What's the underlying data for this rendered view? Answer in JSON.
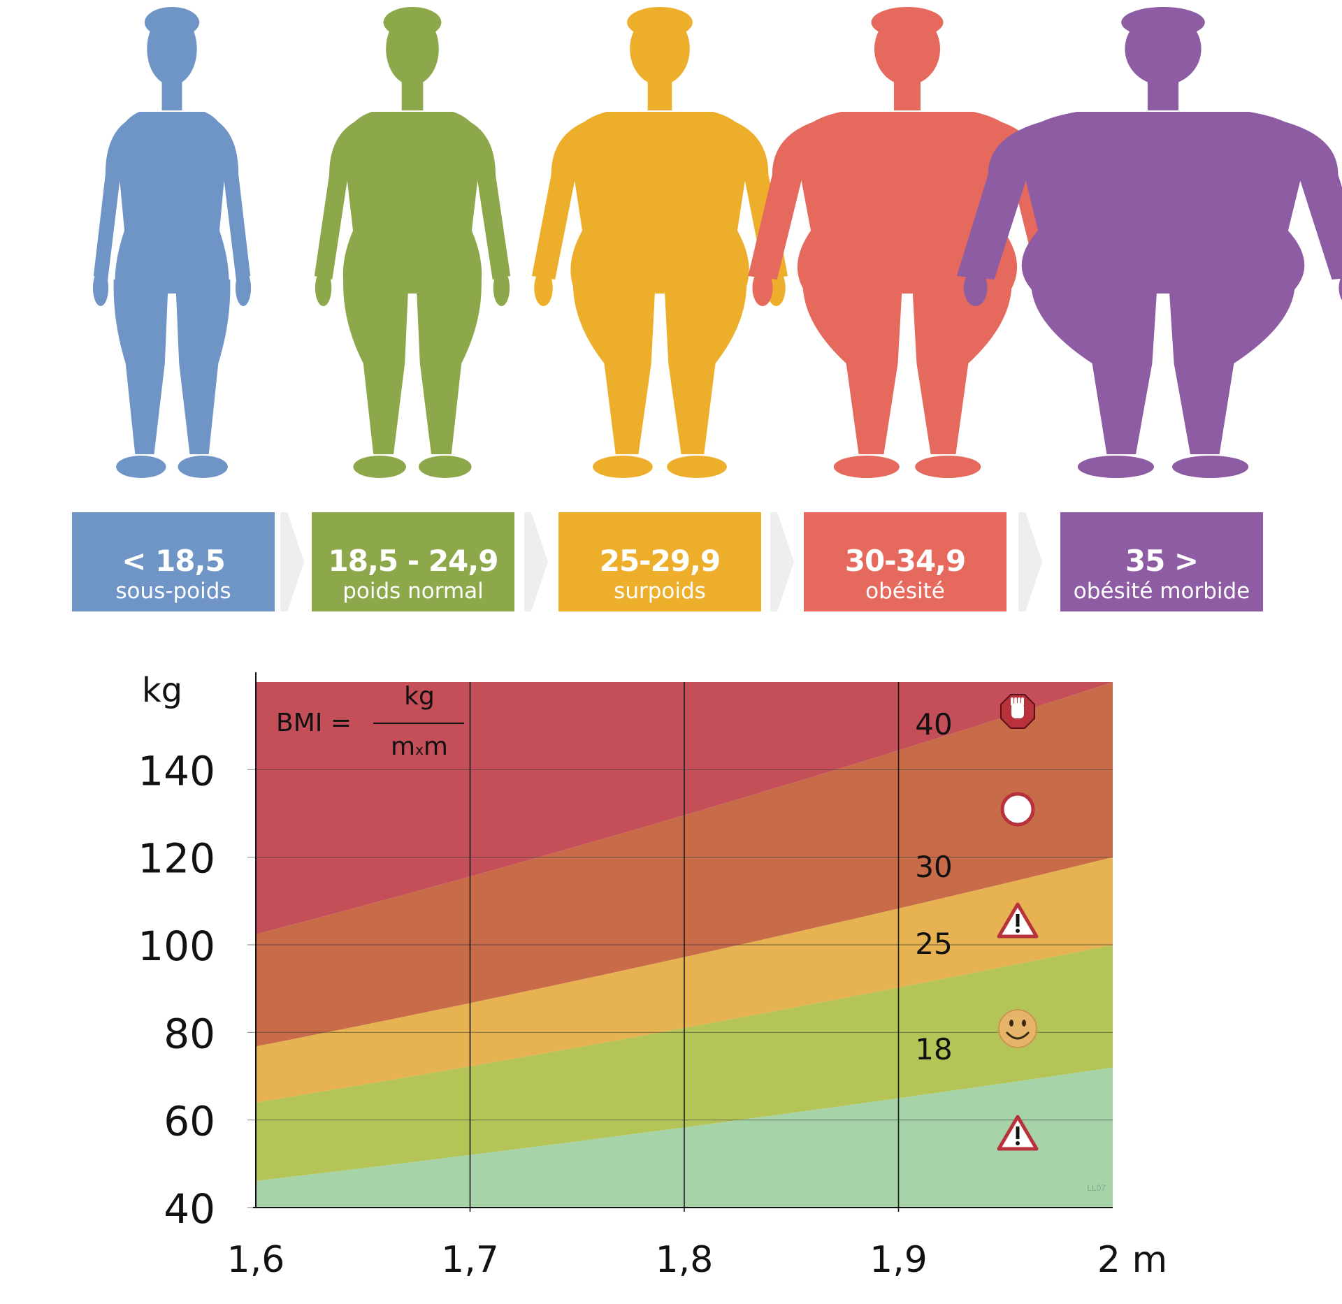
{
  "categories": [
    {
      "range": "< 18,5",
      "label": "sous-poids",
      "color": "#6f95c6"
    },
    {
      "range": "18,5 - 24,9",
      "label": "poids normal",
      "color": "#8da84a"
    },
    {
      "range": "25-29,9",
      "label": "surpoids",
      "color": "#edaf2b"
    },
    {
      "range": "30-34,9",
      "label": "obésité",
      "color": "#e5695d"
    },
    {
      "range": "35 >",
      "label": "obésité morbide",
      "color": "#8d5ca3"
    }
  ],
  "chart_data": {
    "type": "area",
    "x_unit": "m",
    "y_unit": "kg",
    "xlim": [
      1.6,
      2.0
    ],
    "ylim": [
      40,
      160
    ],
    "x_ticks": [
      "1,6",
      "1,7",
      "1,8",
      "1,9",
      "2 m"
    ],
    "y_ticks": [
      "40",
      "60",
      "80",
      "100",
      "120",
      "140"
    ],
    "y_axis_label": "kg",
    "formula": {
      "lhs": "BMI =",
      "numerator": "kg",
      "denominator_m1": "m",
      "denominator_x": "x",
      "denominator_m2": "m"
    },
    "bmi_lines": [
      18,
      25,
      30,
      40
    ],
    "line_labels": [
      "18",
      "25",
      "30",
      "40"
    ],
    "band_colors": [
      "#a6d4a8",
      "#b4c457",
      "#e7b252",
      "#c76b48",
      "#c44f59"
    ],
    "markers": [
      {
        "icon": "stop-hand-icon",
        "bmi": "> 40"
      },
      {
        "icon": "circle-icon",
        "bmi": "30-40"
      },
      {
        "icon": "warning-icon",
        "bmi": "25-30"
      },
      {
        "icon": "smiley-icon",
        "bmi": "18-25"
      },
      {
        "icon": "warning-icon",
        "bmi": "< 18"
      }
    ],
    "watermark": "LL07"
  }
}
